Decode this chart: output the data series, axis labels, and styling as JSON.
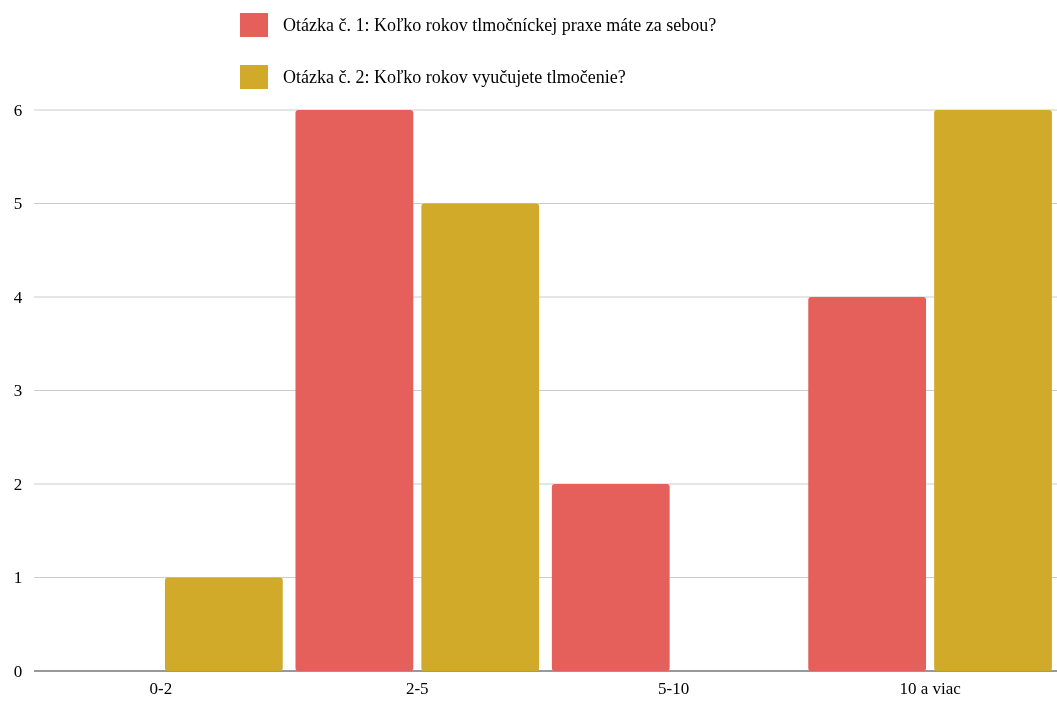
{
  "chart_data": {
    "type": "bar",
    "categories": [
      "0-2",
      "2-5",
      "5-10",
      "10 a viac"
    ],
    "series": [
      {
        "name": "Otázka č. 1: Koľko rokov tlmočníckej praxe máte za sebou?",
        "color": "#e5605a",
        "values": [
          0,
          6,
          2,
          4
        ]
      },
      {
        "name": "Otázka č. 2: Koľko rokov vyučujete tlmočenie?",
        "color": "#d1aa2a",
        "values": [
          1,
          5,
          0,
          6
        ]
      }
    ],
    "ylim": [
      0,
      6
    ],
    "yticks": [
      0,
      1,
      2,
      3,
      4,
      5,
      6
    ],
    "grid": "y",
    "legend": "top"
  }
}
